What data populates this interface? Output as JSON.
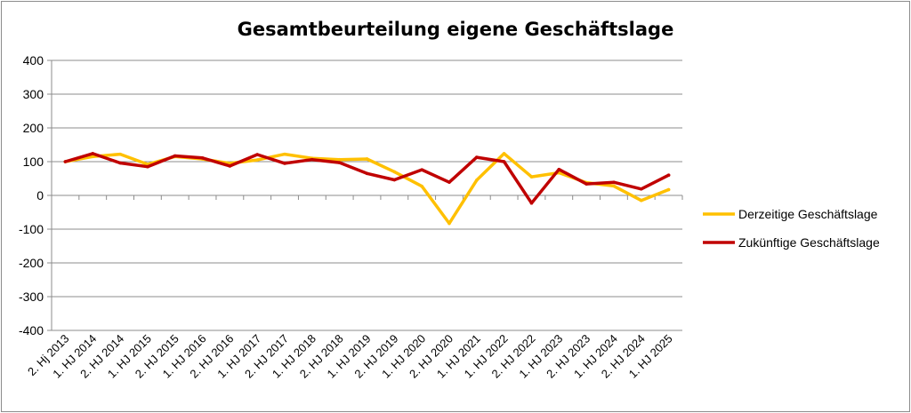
{
  "chart_data": {
    "type": "line",
    "title": "Gesamtbeurteilung eigene Geschäftslage",
    "xlabel": "",
    "ylabel": "",
    "ylim": [
      -400,
      400
    ],
    "yticks": [
      400,
      300,
      200,
      100,
      0,
      -100,
      -200,
      -300,
      -400
    ],
    "grid": true,
    "legend_position": "right",
    "categories": [
      "2. Hj 2013",
      "1. HJ 2014",
      "2. HJ 2014",
      "1. HJ 2015",
      "2. HJ 2015",
      "1. HJ 2016",
      "2. HJ 2016",
      "1. HJ 2017",
      "2. HJ 2017",
      "1. HJ 2018",
      "2. HJ 2018",
      "1. HJ 2019",
      "2. HJ 2019",
      "1. HJ 2020",
      "2. HJ 2020",
      "1. HJ 2021",
      "1. HJ 2022",
      "2. HJ 2022",
      "1. HJ 2023",
      "2. HJ 2023",
      "1. HJ 2024",
      "2. HJ 2024",
      "1. HJ 2025"
    ],
    "series": [
      {
        "name": "Derzeitige Geschäftslage",
        "color": "#FFC000",
        "values": [
          100,
          115,
          122,
          92,
          115,
          108,
          95,
          105,
          122,
          110,
          106,
          108,
          70,
          27,
          -83,
          45,
          124,
          55,
          67,
          38,
          28,
          -15,
          17
        ]
      },
      {
        "name": "Zukünftige Geschäftslage",
        "color": "#C00000",
        "values": [
          100,
          124,
          96,
          85,
          117,
          111,
          87,
          121,
          95,
          106,
          97,
          65,
          46,
          76,
          39,
          113,
          100,
          -23,
          77,
          34,
          39,
          19,
          60
        ]
      }
    ]
  }
}
